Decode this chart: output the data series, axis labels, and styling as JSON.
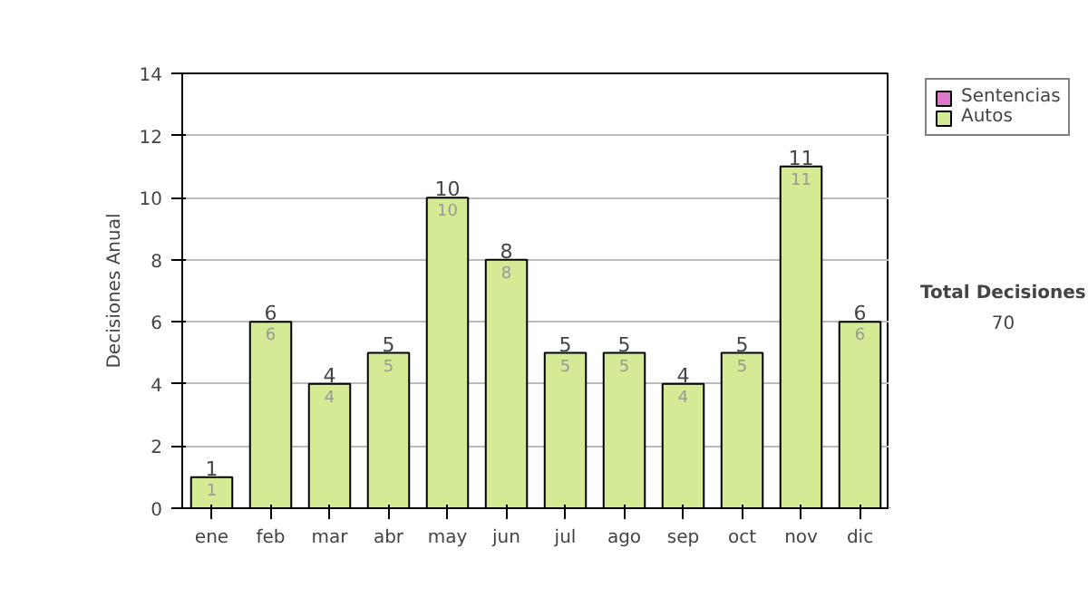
{
  "chart_data": {
    "type": "bar",
    "ylabel": "Decisiones Anual",
    "categories": [
      "ene",
      "feb",
      "mar",
      "abr",
      "may",
      "jun",
      "jul",
      "ago",
      "sep",
      "oct",
      "nov",
      "dic"
    ],
    "stacked": true,
    "series": [
      {
        "name": "Sentencias",
        "color": "#dd77cc",
        "values": [
          0,
          0,
          0,
          0,
          0,
          0,
          0,
          0,
          0,
          0,
          0,
          0
        ]
      },
      {
        "name": "Autos",
        "color": "#d4ea94",
        "values": [
          1,
          6,
          4,
          5,
          10,
          8,
          5,
          5,
          4,
          5,
          11,
          6
        ],
        "value_labels": [
          "1",
          "6",
          "4",
          "5",
          "10",
          "8",
          "5",
          "5",
          "4",
          "5",
          "11",
          "6"
        ]
      }
    ],
    "totals": [
      "1",
      "6",
      "4",
      "5",
      "10",
      "8",
      "5",
      "5",
      "4",
      "5",
      "11",
      "6"
    ],
    "ylim": [
      0,
      14
    ],
    "yticks": [
      0,
      2,
      4,
      6,
      8,
      10,
      12,
      14
    ],
    "grid": "y",
    "legend": "right",
    "annotations": [
      "Total Decisiones",
      "70"
    ]
  }
}
